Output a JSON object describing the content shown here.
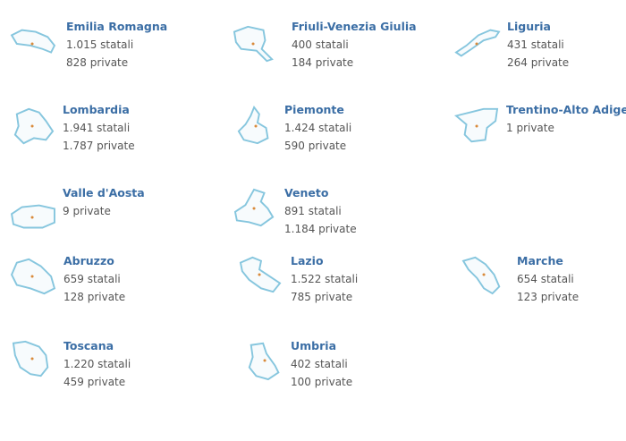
{
  "regions": [
    {
      "name": "Emilia Romagna",
      "lines": [
        "1.015 statali",
        "828 private"
      ]
    },
    {
      "name": "Friuli-Venezia Giulia",
      "lines": [
        "400 statali",
        "184 private"
      ]
    },
    {
      "name": "Liguria",
      "lines": [
        "431 statali",
        "264 private"
      ]
    },
    {
      "name": "Lombardia",
      "lines": [
        "1.941 statali",
        "1.787 private"
      ]
    },
    {
      "name": "Piemonte",
      "lines": [
        "1.424 statali",
        "590 private"
      ]
    },
    {
      "name": "Trentino-Alto Adige",
      "lines": [
        "1 private"
      ]
    },
    {
      "name": "Valle d'Aosta",
      "lines": [
        "9 private"
      ]
    },
    {
      "name": "Veneto",
      "lines": [
        "891 statali",
        "1.184 private"
      ]
    },
    {
      "name": "Abruzzo",
      "lines": [
        "659 statali",
        "128 private"
      ]
    },
    {
      "name": "Lazio",
      "lines": [
        "1.522 statali",
        "785 private"
      ]
    },
    {
      "name": "Marche",
      "lines": [
        "654 statali",
        "123 private"
      ]
    },
    {
      "name": "Toscana",
      "lines": [
        "1.220 statali",
        "459 private"
      ]
    },
    {
      "name": "Umbria",
      "lines": [
        "402 statali",
        "100 private"
      ]
    }
  ],
  "colors": {
    "title": "#3b6ea5",
    "text": "#555555",
    "map_outline": "#86c6de"
  },
  "icons": "region-map-icon"
}
